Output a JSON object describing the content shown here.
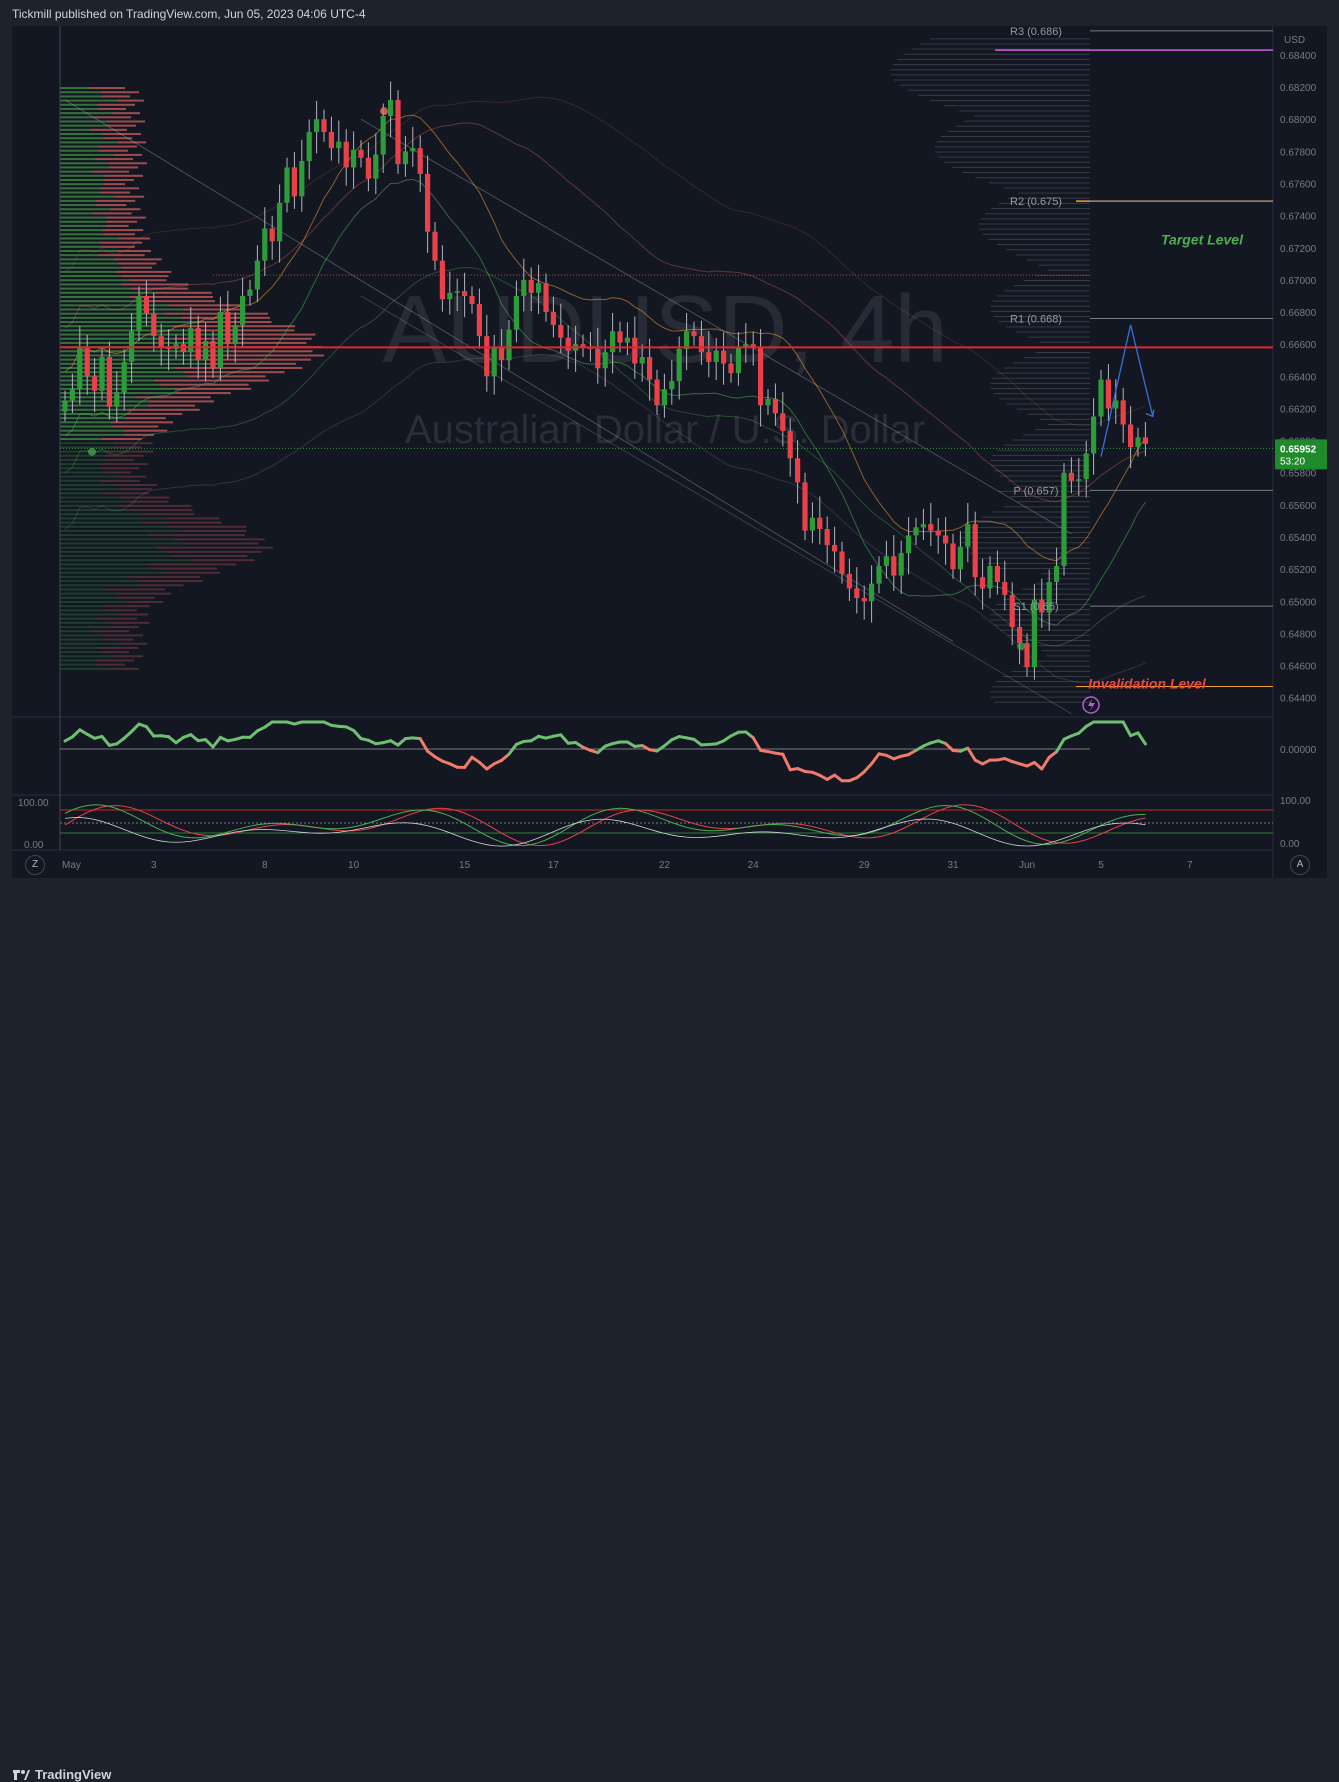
{
  "header": {
    "published": "Tickmill published on TradingView.com, Jun 05, 2023 04:06 UTC-4"
  },
  "footer": {
    "brand": "TradingView",
    "zoom_button": "Z",
    "auto_button": "A"
  },
  "colors": {
    "up": "#2e9b3a",
    "down": "#e8414a",
    "hline_red": "#e0262f",
    "magenta": "#cc5ed6",
    "orange": "#f0a030",
    "blue": "#3670d8",
    "green_text": "#4caf50",
    "red_text": "#f0463c"
  },
  "chart_data": {
    "type": "candlestick",
    "symbol": "AUDUSD, 4h",
    "description": "Australian Dollar / U.S. Dollar",
    "currency": "USD",
    "ylim": [
      0.6428,
      0.6858
    ],
    "y_ticks": [
      "0.68400",
      "0.68200",
      "0.68000",
      "0.67800",
      "0.67600",
      "0.67400",
      "0.67200",
      "0.67000",
      "0.66800",
      "0.66600",
      "0.66400",
      "0.66200",
      "0.66000",
      "0.65800",
      "0.65600",
      "0.65400",
      "0.65200",
      "0.65000",
      "0.64800",
      "0.64600",
      "0.64400"
    ],
    "x_ticks": [
      {
        "label": "May",
        "i": 0
      },
      {
        "label": "3",
        "i": 12
      },
      {
        "label": "8",
        "i": 27
      },
      {
        "label": "10",
        "i": 39
      },
      {
        "label": "15",
        "i": 54
      },
      {
        "label": "17",
        "i": 66
      },
      {
        "label": "22",
        "i": 81
      },
      {
        "label": "24",
        "i": 93
      },
      {
        "label": "29",
        "i": 108
      },
      {
        "label": "31",
        "i": 120
      },
      {
        "label": "Jun",
        "i": 130
      },
      {
        "label": "5",
        "i": 140
      },
      {
        "label": "7",
        "i": 152
      }
    ],
    "closes": [
      0.6625,
      0.6632,
      0.6658,
      0.664,
      0.6631,
      0.6652,
      0.6621,
      0.663,
      0.6649,
      0.6668,
      0.669,
      0.6679,
      0.6665,
      0.6658,
      0.6657,
      0.666,
      0.6655,
      0.667,
      0.665,
      0.6662,
      0.6645,
      0.668,
      0.666,
      0.6672,
      0.669,
      0.6694,
      0.6712,
      0.6732,
      0.6724,
      0.6748,
      0.677,
      0.6752,
      0.6774,
      0.6792,
      0.68,
      0.6792,
      0.6782,
      0.6786,
      0.677,
      0.6781,
      0.6776,
      0.6763,
      0.6778,
      0.6802,
      0.6812,
      0.6772,
      0.678,
      0.6782,
      0.6766,
      0.673,
      0.6712,
      0.6688,
      0.6692,
      0.6693,
      0.669,
      0.6685,
      0.6665,
      0.664,
      0.6658,
      0.665,
      0.6669,
      0.669,
      0.67,
      0.6692,
      0.6698,
      0.668,
      0.6672,
      0.6664,
      0.6656,
      0.666,
      0.6658,
      0.6657,
      0.6645,
      0.6655,
      0.6668,
      0.6661,
      0.6664,
      0.6648,
      0.6652,
      0.6638,
      0.6622,
      0.6632,
      0.6637,
      0.6657,
      0.6668,
      0.6665,
      0.6655,
      0.6649,
      0.6656,
      0.6648,
      0.6642,
      0.6658,
      0.666,
      0.6658,
      0.6622,
      0.6626,
      0.6617,
      0.6606,
      0.6589,
      0.6574,
      0.6544,
      0.6552,
      0.6545,
      0.6535,
      0.6531,
      0.6517,
      0.6508,
      0.6502,
      0.65,
      0.6511,
      0.6522,
      0.6528,
      0.6516,
      0.653,
      0.6541,
      0.6546,
      0.6548,
      0.6544,
      0.6541,
      0.6536,
      0.652,
      0.6534,
      0.6548,
      0.6515,
      0.6508,
      0.6522,
      0.6512,
      0.6504,
      0.6484,
      0.6474,
      0.6459,
      0.6501,
      0.6493,
      0.6512,
      0.6522,
      0.658,
      0.6575,
      0.6576,
      0.6592,
      0.6615,
      0.6638,
      0.662,
      0.6625,
      0.661,
      0.6596,
      0.6602,
      0.6598
    ],
    "last_price": "0.65952",
    "countdown": "53:20",
    "pivots": [
      {
        "label": "R3 (0.686)",
        "y": 0.6855
      },
      {
        "label": "R2 (0.675)",
        "y": 0.6749
      },
      {
        "label": "R1 (0.668)",
        "y": 0.6676
      },
      {
        "label": "P (0.657)",
        "y": 0.6569
      },
      {
        "label": "S1 (0.65)",
        "y": 0.6497
      }
    ],
    "hlines": [
      {
        "y": 0.6658,
        "role": "poc"
      },
      {
        "y": 0.6843,
        "role": "magenta"
      },
      {
        "y": 0.6749,
        "role": "orange"
      },
      {
        "y": 0.6447,
        "role": "invalidation"
      }
    ],
    "annotations": [
      {
        "text": "Target Level",
        "y": 0.6725
      },
      {
        "text": "Invalidation Level",
        "y": 0.6449
      }
    ],
    "projection": [
      [
        140,
        0.659
      ],
      [
        144,
        0.6672
      ],
      [
        147,
        0.6615
      ]
    ],
    "oscillator1": {
      "y_ticks": [
        "0.00000"
      ]
    },
    "oscillator2": {
      "y_ticks": [
        "100.00",
        "0.00"
      ]
    }
  }
}
